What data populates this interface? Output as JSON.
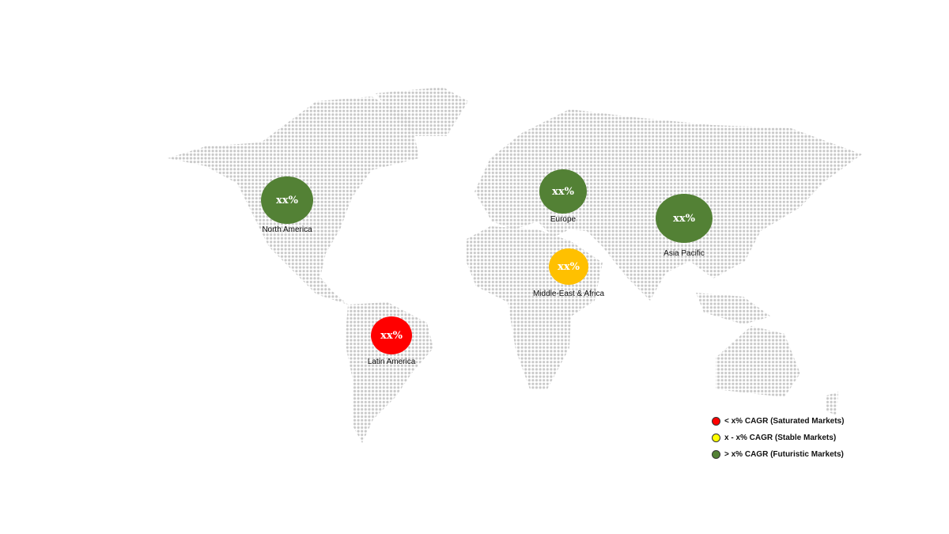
{
  "colors": {
    "saturated": "#ff0000",
    "stable": "#ffc000",
    "stable_legend": "#ffff00",
    "futuristic": "#538135",
    "land_dots": "#c8c8c8"
  },
  "regions": [
    {
      "id": "north-america",
      "label": "North America",
      "value": "xx%",
      "category": "futuristic"
    },
    {
      "id": "europe",
      "label": "Europe",
      "value": "xx%",
      "category": "futuristic"
    },
    {
      "id": "asia-pacific",
      "label": "Asia Pacific",
      "value": "xx%",
      "category": "futuristic"
    },
    {
      "id": "middle-east-africa",
      "label": "Middle-East & Africa",
      "value": "xx%",
      "category": "stable"
    },
    {
      "id": "latin-america",
      "label": "Latin America",
      "value": "xx%",
      "category": "saturated"
    }
  ],
  "legend": [
    {
      "label": "< x% CAGR (Saturated Markets)",
      "color": "#ff0000"
    },
    {
      "label": "x - x% CAGR (Stable Markets)",
      "color": "#ffff00"
    },
    {
      "label": "> x% CAGR (Futuristic Markets)",
      "color": "#538135"
    }
  ]
}
